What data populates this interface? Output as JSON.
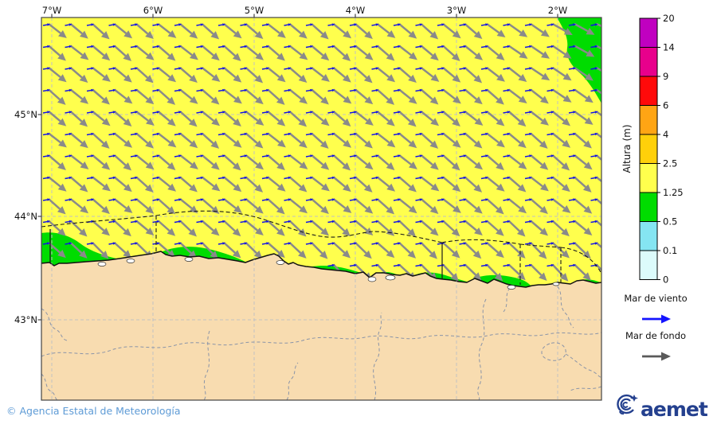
{
  "map": {
    "axis": {
      "lon": [
        "7°W",
        "6°W",
        "5°W",
        "4°W",
        "3°W",
        "2°W"
      ],
      "lat": [
        "45°N",
        "44°N",
        "43°N"
      ]
    },
    "colors": {
      "sea": "#FFFF4D",
      "coastal_low": "#00DC00",
      "land": "#F8DCB0",
      "swell_arrow": "#8A8A8A",
      "wind_sea_arrow": "#0F0FE8",
      "boundary": "#1A1A1A",
      "province_line": "#8A94A8",
      "gridline": "#C2C2C2"
    }
  },
  "colorbar": {
    "title": "Altura (m)",
    "segments": [
      {
        "from": "0",
        "to": "0.1",
        "color": "#DCFBFB"
      },
      {
        "from": "0.1",
        "to": "0.5",
        "color": "#85E5F2"
      },
      {
        "from": "0.5",
        "to": "1.25",
        "color": "#00DC00"
      },
      {
        "from": "1.25",
        "to": "2.5",
        "color": "#FFFF4D"
      },
      {
        "from": "2.5",
        "to": "4",
        "color": "#FFD00A"
      },
      {
        "from": "4",
        "to": "6",
        "color": "#FFA514"
      },
      {
        "from": "6",
        "to": "9",
        "color": "#FF0A0A"
      },
      {
        "from": "9",
        "to": "14",
        "color": "#E8008C"
      },
      {
        "from": "14",
        "to": "20",
        "color": "#C000C0"
      }
    ]
  },
  "legend": {
    "wind_sea_label": "Mar de viento",
    "swell_label": "Mar de fondo",
    "wind_sea_color": "#1414FF",
    "swell_color": "#5A5A5A"
  },
  "footer": {
    "copyright": "© Agencia Estatal de Meteorología",
    "color": "#5E9BD6"
  },
  "logo": {
    "text": "aemet",
    "color": "#24408E"
  },
  "chart_data": {
    "type": "map",
    "variable": "Altura (m)",
    "scale_ticks": [
      0,
      0.1,
      0.5,
      1.25,
      2.5,
      4,
      6,
      9,
      14,
      20
    ],
    "region": "Cantabrian Sea / northern Spain coast, 7°W–2°W, ~42°N–46°N",
    "dominant_wave_height_m": "1.25–2.5 (yellow open sea)",
    "coastal_wave_height_m": "0.5–1.25 (green strips along coast and NE corner)",
    "swell_direction": "from NW toward SE (large gray arrows)",
    "wind_sea_direction": "toward E, very small (tiny blue arrows)"
  }
}
